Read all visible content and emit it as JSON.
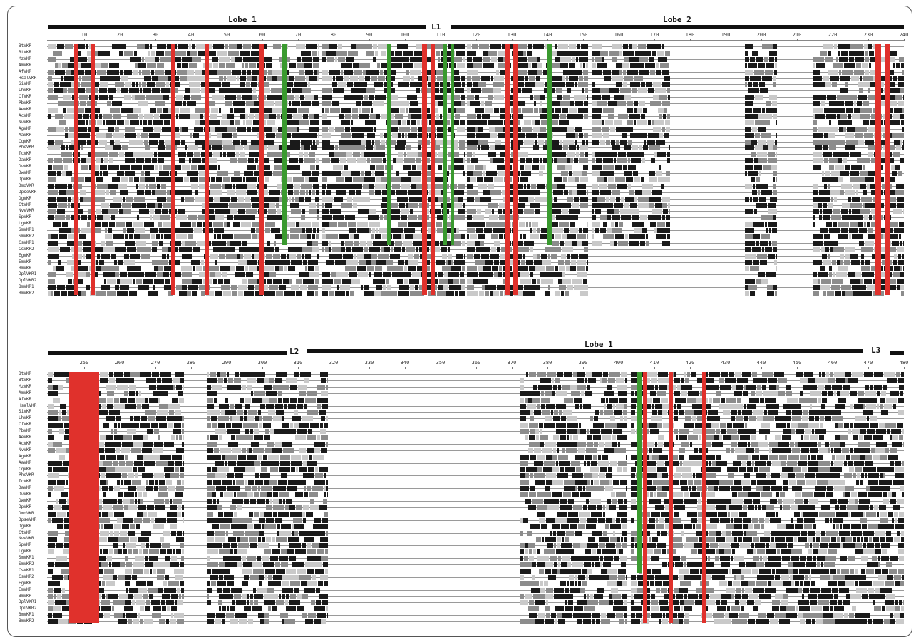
{
  "figure": {
    "panel_top": {
      "lobes": [
        {
          "label": "Lobe 1"
        },
        {
          "label": "L1"
        },
        {
          "label": "Lobe 2"
        }
      ],
      "ruler": [
        "10",
        "20",
        "30",
        "40",
        "50",
        "60",
        "70",
        "80",
        "90",
        "100",
        "110",
        "120",
        "130",
        "140",
        "150",
        "160",
        "170",
        "180",
        "190",
        "200",
        "210",
        "220",
        "230",
        "240"
      ]
    },
    "panel_bottom": {
      "lobes": [
        {
          "label": "L2"
        },
        {
          "label": "Lobe 1"
        },
        {
          "label": "L3"
        }
      ],
      "ruler": [
        "250",
        "260",
        "270",
        "280",
        "290",
        "300",
        "310",
        "320",
        "330",
        "340",
        "350",
        "360",
        "370",
        "380",
        "390",
        "400",
        "410",
        "420",
        "430",
        "440",
        "450",
        "460",
        "470",
        "480"
      ]
    },
    "sequences": [
      "BtVKR",
      "BtVKR",
      "MzVKR",
      "AmVKR",
      "AfVKR",
      "HsalVKR",
      "SiVKR",
      "LhVKR",
      "CfVKR",
      "PbVKR",
      "AeVKR",
      "AcVKR",
      "NvVKR",
      "AgVKR",
      "AaVKR",
      "CqVKR",
      "PhcVKR",
      "TcVKR",
      "DaVKR",
      "DvVKR",
      "DwVKR",
      "DpVKR",
      "DmoVKR",
      "DpseVKR",
      "DgVKR",
      "CtVKR",
      "NveVKR",
      "SpVKR",
      "LgVKR",
      "SmVKR1",
      "SmVKR2",
      "CsVKR1",
      "CsVKR2",
      "EgVKR",
      "EmVKR",
      "BmVKR",
      "DplVKR1",
      "DplVKR2",
      "BmVKR1",
      "BmVKR2"
    ]
  }
}
